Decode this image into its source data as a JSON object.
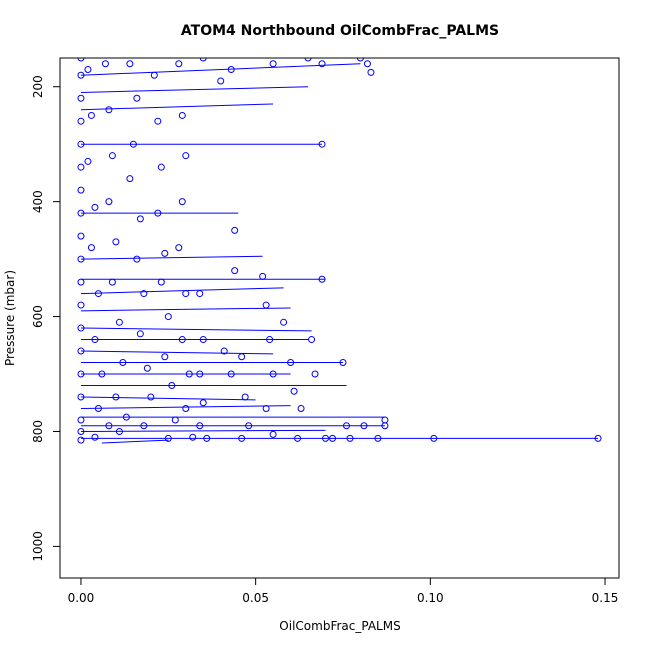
{
  "chart_data": {
    "type": "scatter",
    "title": "ATOM4 Northbound OilCombFrac_PALMS",
    "xlabel": "OilCombFrac_PALMS",
    "ylabel": "Pressure (mbar)",
    "xlim": [
      -0.006,
      0.154
    ],
    "ylim": [
      150,
      1055
    ],
    "y_reversed": true,
    "x_ticks": [
      0.0,
      0.05,
      0.1,
      0.15
    ],
    "x_tick_labels": [
      "0.00",
      "0.05",
      "0.10",
      "0.15"
    ],
    "y_ticks": [
      200,
      400,
      600,
      800,
      1000
    ],
    "y_tick_labels": [
      "200",
      "400",
      "600",
      "800",
      "1000"
    ],
    "grid": false,
    "legend": "none",
    "marker": "open-circle",
    "series_color": "#0000ff",
    "series": [
      {
        "points": [
          [
            0.0,
            150
          ],
          [
            0.0,
            180
          ],
          [
            0.0,
            220
          ],
          [
            0.0,
            260
          ],
          [
            0.0,
            300
          ],
          [
            0.0,
            340
          ],
          [
            0.0,
            380
          ],
          [
            0.0,
            420
          ],
          [
            0.0,
            460
          ],
          [
            0.0,
            500
          ],
          [
            0.0,
            540
          ],
          [
            0.0,
            580
          ],
          [
            0.0,
            620
          ],
          [
            0.0,
            660
          ],
          [
            0.0,
            700
          ],
          [
            0.0,
            740
          ],
          [
            0.0,
            780
          ],
          [
            0.0,
            800
          ],
          [
            0.0,
            815
          ],
          [
            0.002,
            170
          ],
          [
            0.003,
            250
          ],
          [
            0.002,
            330
          ],
          [
            0.004,
            410
          ],
          [
            0.003,
            480
          ],
          [
            0.005,
            560
          ],
          [
            0.004,
            640
          ],
          [
            0.006,
            700
          ],
          [
            0.005,
            760
          ],
          [
            0.008,
            790
          ],
          [
            0.004,
            810
          ],
          [
            0.007,
            160
          ],
          [
            0.008,
            240
          ],
          [
            0.009,
            320
          ],
          [
            0.008,
            400
          ],
          [
            0.01,
            470
          ],
          [
            0.009,
            540
          ],
          [
            0.011,
            610
          ],
          [
            0.012,
            680
          ],
          [
            0.01,
            740
          ],
          [
            0.013,
            775
          ],
          [
            0.011,
            800
          ],
          [
            0.014,
            160
          ],
          [
            0.016,
            220
          ],
          [
            0.015,
            300
          ],
          [
            0.014,
            360
          ],
          [
            0.017,
            430
          ],
          [
            0.016,
            500
          ],
          [
            0.018,
            560
          ],
          [
            0.017,
            630
          ],
          [
            0.019,
            690
          ],
          [
            0.02,
            740
          ],
          [
            0.018,
            790
          ],
          [
            0.021,
            180
          ],
          [
            0.022,
            260
          ],
          [
            0.023,
            340
          ],
          [
            0.022,
            420
          ],
          [
            0.024,
            490
          ],
          [
            0.023,
            540
          ],
          [
            0.025,
            600
          ],
          [
            0.024,
            670
          ],
          [
            0.026,
            720
          ],
          [
            0.027,
            780
          ],
          [
            0.025,
            812
          ],
          [
            0.028,
            160
          ],
          [
            0.029,
            250
          ],
          [
            0.03,
            320
          ],
          [
            0.029,
            400
          ],
          [
            0.028,
            480
          ],
          [
            0.03,
            560
          ],
          [
            0.029,
            640
          ],
          [
            0.031,
            700
          ],
          [
            0.03,
            760
          ],
          [
            0.032,
            810
          ],
          [
            0.035,
            150
          ],
          [
            0.034,
            560
          ],
          [
            0.035,
            640
          ],
          [
            0.034,
            700
          ],
          [
            0.035,
            750
          ],
          [
            0.034,
            790
          ],
          [
            0.036,
            812
          ],
          [
            0.04,
            190
          ],
          [
            0.043,
            170
          ],
          [
            0.041,
            660
          ],
          [
            0.043,
            700
          ],
          [
            0.044,
            450
          ],
          [
            0.044,
            520
          ],
          [
            0.046,
            670
          ],
          [
            0.047,
            740
          ],
          [
            0.048,
            790
          ],
          [
            0.046,
            812
          ],
          [
            0.052,
            530
          ],
          [
            0.053,
            580
          ],
          [
            0.054,
            640
          ],
          [
            0.055,
            700
          ],
          [
            0.053,
            760
          ],
          [
            0.055,
            805
          ],
          [
            0.055,
            160
          ],
          [
            0.058,
            610
          ],
          [
            0.06,
            680
          ],
          [
            0.061,
            730
          ],
          [
            0.063,
            760
          ],
          [
            0.062,
            812
          ],
          [
            0.065,
            150
          ],
          [
            0.066,
            640
          ],
          [
            0.067,
            700
          ],
          [
            0.069,
            160
          ],
          [
            0.069,
            300
          ],
          [
            0.069,
            535
          ],
          [
            0.07,
            812
          ],
          [
            0.072,
            812
          ],
          [
            0.075,
            680
          ],
          [
            0.076,
            790
          ],
          [
            0.077,
            812
          ],
          [
            0.08,
            150
          ],
          [
            0.082,
            160
          ],
          [
            0.083,
            175
          ],
          [
            0.081,
            790
          ],
          [
            0.085,
            812
          ],
          [
            0.087,
            780
          ],
          [
            0.087,
            790
          ],
          [
            0.101,
            812
          ],
          [
            0.148,
            812
          ]
        ]
      }
    ],
    "segments": [
      [
        0.0,
        150,
        0.086,
        150
      ],
      [
        0.0,
        180,
        0.08,
        160
      ],
      [
        0.0,
        210,
        0.065,
        200
      ],
      [
        0.0,
        240,
        0.055,
        230
      ],
      [
        0.0,
        300,
        0.069,
        300
      ],
      [
        0.0,
        420,
        0.045,
        420
      ],
      [
        0.0,
        500,
        0.052,
        495
      ],
      [
        0.0,
        535,
        0.07,
        535
      ],
      [
        0.0,
        560,
        0.058,
        550
      ],
      [
        0.0,
        590,
        0.06,
        585
      ],
      [
        0.0,
        620,
        0.066,
        625
      ],
      [
        0.0,
        640,
        0.065,
        640
      ],
      [
        0.0,
        660,
        0.055,
        665
      ],
      [
        0.0,
        680,
        0.075,
        680
      ],
      [
        0.0,
        700,
        0.06,
        700
      ],
      [
        0.0,
        720,
        0.076,
        720
      ],
      [
        0.0,
        740,
        0.05,
        745
      ],
      [
        0.0,
        760,
        0.06,
        755
      ],
      [
        0.0,
        775,
        0.087,
        775
      ],
      [
        0.0,
        790,
        0.087,
        790
      ],
      [
        0.0,
        800,
        0.07,
        798
      ],
      [
        0.0,
        812,
        0.148,
        812
      ],
      [
        0.006,
        820,
        0.025,
        815
      ]
    ]
  }
}
